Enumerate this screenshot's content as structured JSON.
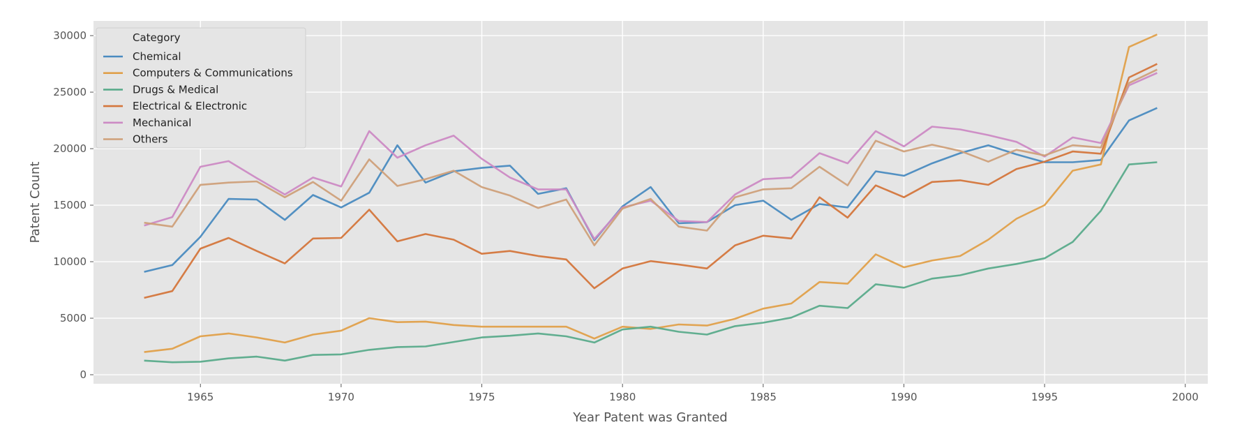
{
  "chart_data": {
    "type": "line",
    "xlabel": "Year Patent was Granted",
    "ylabel": "Patent Count",
    "xlim": [
      1961.2,
      2000.8
    ],
    "ylim": [
      -800,
      31300
    ],
    "xticks": [
      1965,
      1970,
      1975,
      1980,
      1985,
      1990,
      1995,
      2000
    ],
    "yticks": [
      0,
      5000,
      10000,
      15000,
      20000,
      25000,
      30000
    ],
    "grid": true,
    "legend": {
      "title": "Category",
      "position": "top-left"
    },
    "x": [
      1963,
      1964,
      1965,
      1966,
      1967,
      1968,
      1969,
      1970,
      1971,
      1972,
      1973,
      1974,
      1975,
      1976,
      1977,
      1978,
      1979,
      1980,
      1981,
      1982,
      1983,
      1984,
      1985,
      1986,
      1987,
      1988,
      1989,
      1990,
      1991,
      1992,
      1993,
      1994,
      1995,
      1996,
      1997,
      1998,
      1999
    ],
    "series": [
      {
        "name": "Chemical",
        "color": "#4a8bc0",
        "values": [
          9100,
          9700,
          12200,
          15550,
          15500,
          13700,
          15900,
          14800,
          16100,
          20300,
          17000,
          18000,
          18300,
          18500,
          16000,
          16500,
          11900,
          14900,
          16600,
          13400,
          13500,
          15000,
          15400,
          13700,
          15100,
          14800,
          18000,
          17600,
          18700,
          19600,
          20300,
          19500,
          18800,
          18800,
          19000,
          22500,
          23600
        ]
      },
      {
        "name": "Computers & Communications",
        "color": "#e0a04a",
        "values": [
          2000,
          2300,
          3400,
          3650,
          3300,
          2850,
          3550,
          3900,
          5000,
          4650,
          4700,
          4400,
          4250,
          4250,
          4250,
          4250,
          3200,
          4250,
          4050,
          4450,
          4350,
          4950,
          5850,
          6300,
          8200,
          8050,
          10650,
          9500,
          10100,
          10500,
          11950,
          13800,
          15000,
          18050,
          18600,
          29000,
          30100
        ]
      },
      {
        "name": "Drugs & Medical",
        "color": "#5aab8b",
        "values": [
          1250,
          1100,
          1150,
          1450,
          1600,
          1250,
          1750,
          1800,
          2200,
          2450,
          2500,
          2900,
          3300,
          3450,
          3650,
          3400,
          2850,
          4000,
          4250,
          3800,
          3550,
          4300,
          4600,
          5050,
          6100,
          5900,
          8000,
          7700,
          8500,
          8800,
          9400,
          9800,
          10300,
          11750,
          14500,
          18600,
          18800
        ]
      },
      {
        "name": "Electrical & Electronic",
        "color": "#d4763c",
        "values": [
          6800,
          7400,
          11150,
          12100,
          10950,
          9850,
          12050,
          12100,
          14600,
          11800,
          12450,
          11950,
          10700,
          10950,
          10500,
          10200,
          7650,
          9400,
          10050,
          9750,
          9400,
          11450,
          12300,
          12050,
          15700,
          13900,
          16750,
          15700,
          17050,
          17200,
          16800,
          18200,
          18850,
          19750,
          19550,
          26300,
          27500
        ]
      },
      {
        "name": "Mechanical",
        "color": "#cc8ac4",
        "values": [
          13200,
          13950,
          18400,
          18900,
          17400,
          15950,
          17450,
          16650,
          21550,
          19200,
          20300,
          21150,
          19100,
          17450,
          16400,
          16400,
          12000,
          14800,
          15400,
          13600,
          13500,
          15950,
          17300,
          17450,
          19600,
          18700,
          21550,
          20200,
          21950,
          21700,
          21200,
          20600,
          19300,
          21000,
          20500,
          25600,
          26700
        ]
      },
      {
        "name": "Others",
        "color": "#cfa07a",
        "values": [
          13450,
          13100,
          16800,
          17000,
          17100,
          15700,
          17050,
          15400,
          19050,
          16700,
          17300,
          18050,
          16600,
          15850,
          14750,
          15500,
          11450,
          14700,
          15550,
          13100,
          12750,
          15700,
          16400,
          16500,
          18400,
          16750,
          20700,
          19750,
          20350,
          19800,
          18850,
          19900,
          19400,
          20300,
          20100,
          25800,
          27000
        ]
      }
    ]
  }
}
